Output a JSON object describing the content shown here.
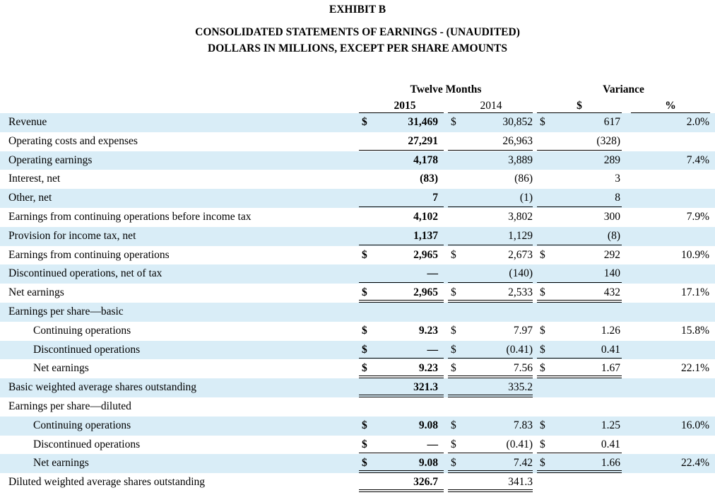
{
  "header": {
    "exhibit": "EXHIBIT B",
    "title_line1": "CONSOLIDATED STATEMENTS OF EARNINGS - (UNAUDITED)",
    "title_line2": "DOLLARS IN MILLIONS, EXCEPT PER SHARE AMOUNTS"
  },
  "columns": {
    "group_twelve_months": "Twelve Months",
    "group_variance": "Variance",
    "col_2015": "2015",
    "col_2014": "2014",
    "col_dollar": "$",
    "col_percent": "%"
  },
  "rows": [
    {
      "label": "Revenue",
      "d2015": "$",
      "v2015": "31,469",
      "d2014": "$",
      "v2014": "30,852",
      "dvar": "$",
      "vvar": "617",
      "vpct": "2.0%"
    },
    {
      "label": "Operating costs and expenses",
      "d2015": "",
      "v2015": "27,291",
      "d2014": "",
      "v2014": "26,963",
      "dvar": "",
      "vvar": "(328)",
      "vpct": ""
    },
    {
      "label": "Operating earnings",
      "d2015": "",
      "v2015": "4,178",
      "d2014": "",
      "v2014": "3,889",
      "dvar": "",
      "vvar": "289",
      "vpct": "7.4%"
    },
    {
      "label": "Interest, net",
      "d2015": "",
      "v2015": "(83)",
      "d2014": "",
      "v2014": "(86)",
      "dvar": "",
      "vvar": "3",
      "vpct": ""
    },
    {
      "label": "Other, net",
      "d2015": "",
      "v2015": "7",
      "d2014": "",
      "v2014": "(1)",
      "dvar": "",
      "vvar": "8",
      "vpct": ""
    },
    {
      "label": "Earnings from continuing operations before income tax",
      "d2015": "",
      "v2015": "4,102",
      "d2014": "",
      "v2014": "3,802",
      "dvar": "",
      "vvar": "300",
      "vpct": "7.9%"
    },
    {
      "label": "Provision for income tax, net",
      "d2015": "",
      "v2015": "1,137",
      "d2014": "",
      "v2014": "1,129",
      "dvar": "",
      "vvar": "(8)",
      "vpct": ""
    },
    {
      "label": "Earnings from continuing operations",
      "d2015": "$",
      "v2015": "2,965",
      "d2014": "$",
      "v2014": "2,673",
      "dvar": "$",
      "vvar": "292",
      "vpct": "10.9%"
    },
    {
      "label": "Discontinued operations, net of tax",
      "d2015": "",
      "v2015": "—",
      "d2014": "",
      "v2014": "(140)",
      "dvar": "",
      "vvar": "140",
      "vpct": ""
    },
    {
      "label": "Net earnings",
      "d2015": "$",
      "v2015": "2,965",
      "d2014": "$",
      "v2014": "2,533",
      "dvar": "$",
      "vvar": "432",
      "vpct": "17.1%"
    },
    {
      "label": "Earnings per share—basic",
      "d2015": "",
      "v2015": "",
      "d2014": "",
      "v2014": "",
      "dvar": "",
      "vvar": "",
      "vpct": ""
    },
    {
      "label": "Continuing operations",
      "d2015": "$",
      "v2015": "9.23",
      "d2014": "$",
      "v2014": "7.97",
      "dvar": "$",
      "vvar": "1.26",
      "vpct": "15.8%"
    },
    {
      "label": "Discontinued operations",
      "d2015": "$",
      "v2015": "—",
      "d2014": "$",
      "v2014": "(0.41)",
      "dvar": "$",
      "vvar": "0.41",
      "vpct": ""
    },
    {
      "label": "Net earnings",
      "d2015": "$",
      "v2015": "9.23",
      "d2014": "$",
      "v2014": "7.56",
      "dvar": "$",
      "vvar": "1.67",
      "vpct": "22.1%"
    },
    {
      "label": "Basic weighted average shares outstanding",
      "d2015": "",
      "v2015": "321.3",
      "d2014": "",
      "v2014": "335.2",
      "dvar": "",
      "vvar": "",
      "vpct": ""
    },
    {
      "label": "Earnings per share—diluted",
      "d2015": "",
      "v2015": "",
      "d2014": "",
      "v2014": "",
      "dvar": "",
      "vvar": "",
      "vpct": ""
    },
    {
      "label": "Continuing operations",
      "d2015": "$",
      "v2015": "9.08",
      "d2014": "$",
      "v2014": "7.83",
      "dvar": "$",
      "vvar": "1.25",
      "vpct": "16.0%"
    },
    {
      "label": "Discontinued operations",
      "d2015": "$",
      "v2015": "—",
      "d2014": "$",
      "v2014": "(0.41)",
      "dvar": "$",
      "vvar": "0.41",
      "vpct": ""
    },
    {
      "label": "Net earnings",
      "d2015": "$",
      "v2015": "9.08",
      "d2014": "$",
      "v2014": "7.42",
      "dvar": "$",
      "vvar": "1.66",
      "vpct": "22.4%"
    },
    {
      "label": "Diluted weighted average shares outstanding",
      "d2015": "",
      "v2015": "326.7",
      "d2014": "",
      "v2014": "341.3",
      "dvar": "",
      "vvar": "",
      "vpct": ""
    }
  ]
}
